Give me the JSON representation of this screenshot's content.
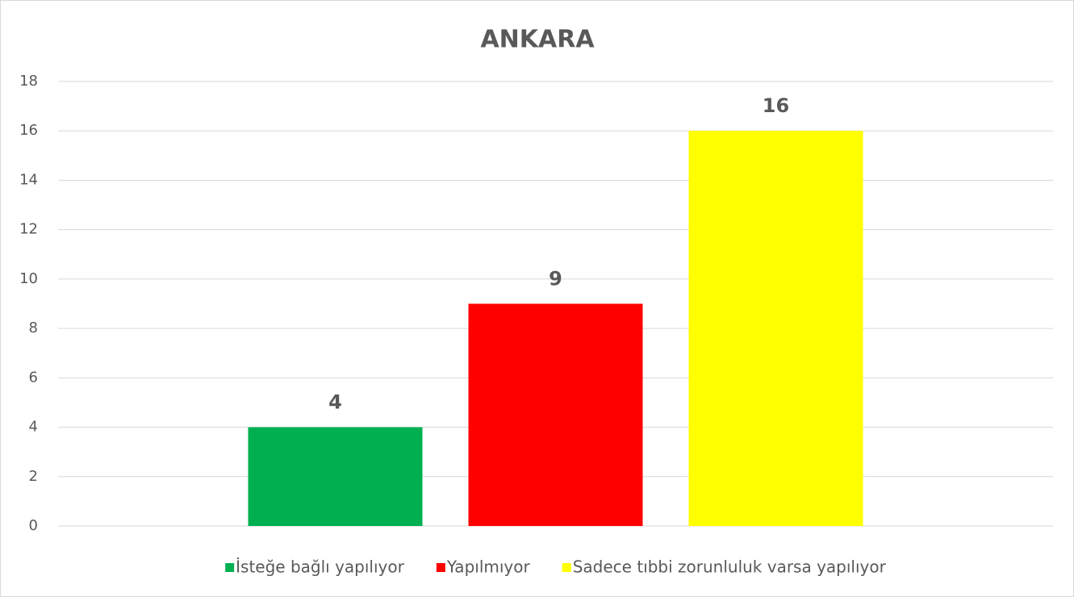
{
  "chart_data": {
    "type": "bar",
    "title": "ANKARA",
    "categories": [
      null
    ],
    "series": [
      {
        "name": "İsteğe bağlı yapılıyor",
        "color": "#00b050",
        "values": [
          4
        ]
      },
      {
        "name": "Yapılmıyor",
        "color": "#ff0000",
        "values": [
          9
        ]
      },
      {
        "name": "Sadece tıbbi zorunluluk varsa yapılıyor",
        "color": "#ffff00",
        "values": [
          16
        ]
      }
    ],
    "ylim": [
      0,
      18
    ],
    "yticks": [
      0,
      2,
      4,
      6,
      8,
      10,
      12,
      14,
      16,
      18
    ],
    "grid": true,
    "legend": "bottom"
  }
}
